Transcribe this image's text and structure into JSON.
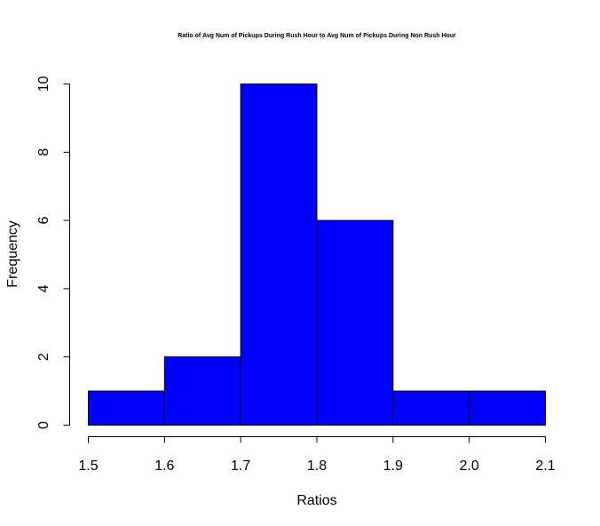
{
  "chart_data": {
    "type": "histogram",
    "title": "Ratio of Avg Num of Pickups During Rush Hour to Avg Num of Pickups During Non Rush Hour",
    "xlabel": "Ratios",
    "ylabel": "Frequency",
    "bins": [
      {
        "start": 1.5,
        "end": 1.6,
        "count": 1
      },
      {
        "start": 1.6,
        "end": 1.7,
        "count": 2
      },
      {
        "start": 1.7,
        "end": 1.8,
        "count": 10
      },
      {
        "start": 1.8,
        "end": 1.9,
        "count": 6
      },
      {
        "start": 1.9,
        "end": 2.0,
        "count": 1
      },
      {
        "start": 2.0,
        "end": 2.1,
        "count": 1
      }
    ],
    "xlim": [
      1.5,
      2.1
    ],
    "ylim": [
      0,
      10
    ],
    "x_ticks": [
      "1.5",
      "1.6",
      "1.7",
      "1.8",
      "1.9",
      "2.0",
      "2.1"
    ],
    "y_ticks": [
      "0",
      "2",
      "4",
      "6",
      "8",
      "10"
    ],
    "bar_color": "#0000ff",
    "grid": false,
    "legend": "none"
  }
}
